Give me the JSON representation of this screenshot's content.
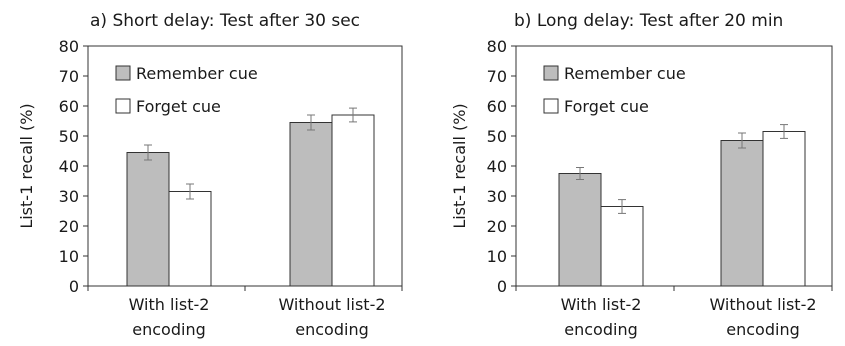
{
  "chart_data": [
    {
      "type": "bar",
      "title": "a)  Short delay: Test after 30 sec",
      "ylabel": "List-1 recall (%)",
      "xlabel": "",
      "ylim": [
        0,
        80
      ],
      "yticks": [
        "0",
        "10",
        "20",
        "30",
        "40",
        "50",
        "60",
        "70",
        "80"
      ],
      "categories": [
        [
          "With list-2",
          "encoding"
        ],
        [
          "Without list-2",
          "encoding"
        ]
      ],
      "series": [
        {
          "name": "Remember cue",
          "color": "#bdbdbd",
          "values": [
            44.5,
            54.5
          ],
          "errors": [
            2.5,
            2.5
          ]
        },
        {
          "name": "Forget cue",
          "color": "#ffffff",
          "values": [
            31.5,
            57.0
          ],
          "errors": [
            2.5,
            2.3
          ]
        }
      ],
      "legend": "top-left",
      "grid": false
    },
    {
      "type": "bar",
      "title": "b)  Long delay: Test after 20 min",
      "ylabel": "List-1 recall (%)",
      "xlabel": "",
      "ylim": [
        0,
        80
      ],
      "yticks": [
        "0",
        "10",
        "20",
        "30",
        "40",
        "50",
        "60",
        "70",
        "80"
      ],
      "categories": [
        [
          "With list-2",
          "encoding"
        ],
        [
          "Without list-2",
          "encoding"
        ]
      ],
      "series": [
        {
          "name": "Remember cue",
          "color": "#bdbdbd",
          "values": [
            37.5,
            48.5
          ],
          "errors": [
            2.0,
            2.5
          ]
        },
        {
          "name": "Forget cue",
          "color": "#ffffff",
          "values": [
            26.5,
            51.5
          ],
          "errors": [
            2.3,
            2.3
          ]
        }
      ],
      "legend": "top-left",
      "grid": false
    }
  ]
}
